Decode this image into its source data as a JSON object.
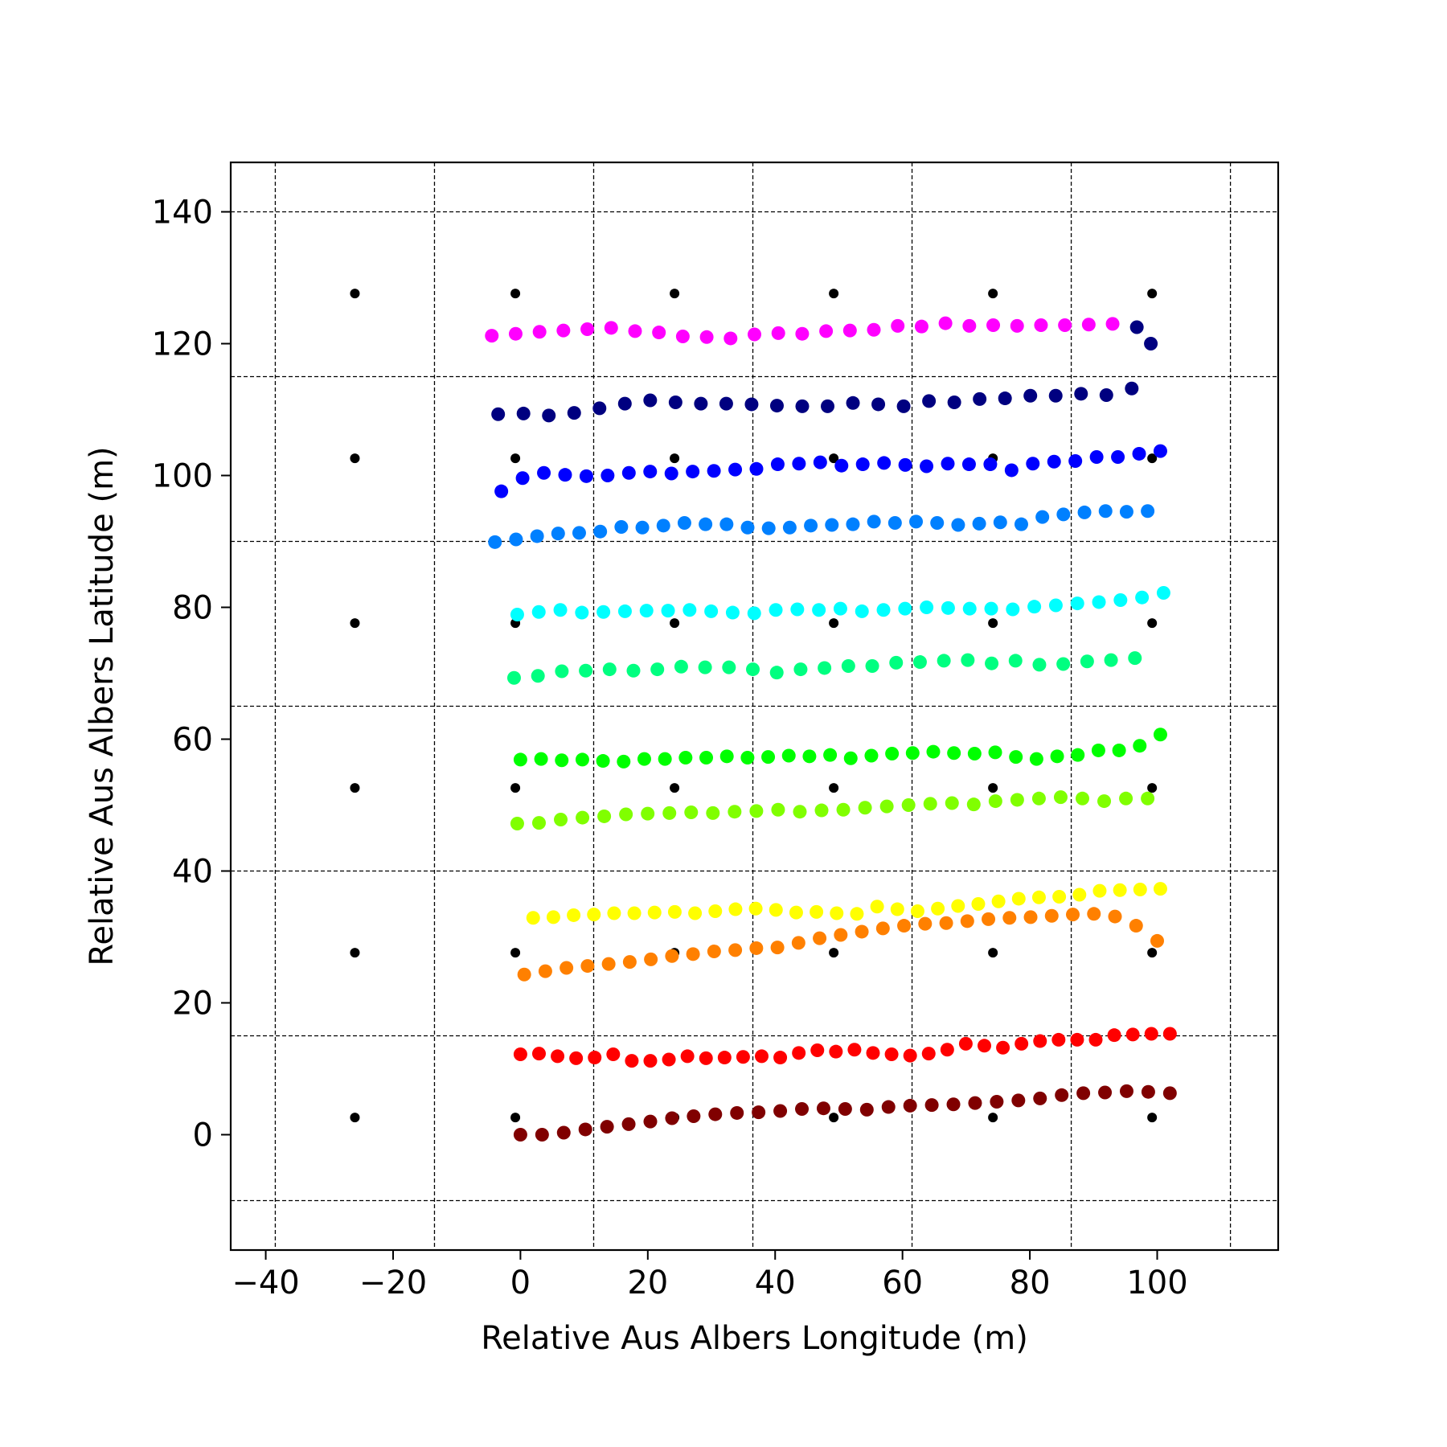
{
  "chart_data": {
    "type": "scatter",
    "title": "",
    "xlabel": "Relative Aus Albers Longitude (m)",
    "ylabel": "Relative Aus Albers Latitude (m)",
    "xlim": [
      -45.5,
      119
    ],
    "ylim": [
      -17.5,
      147.5
    ],
    "xticks": [
      -40,
      -20,
      0,
      20,
      40,
      60,
      80,
      100
    ],
    "xtick_labels": [
      "−40",
      "−20",
      "0",
      "20",
      "40",
      "60",
      "80",
      "100"
    ],
    "yticks": [
      0,
      20,
      40,
      60,
      80,
      100,
      120,
      140
    ],
    "ytick_labels": [
      "0",
      "20",
      "40",
      "60",
      "80",
      "100",
      "120",
      "140"
    ],
    "grid": {
      "style": "dashed",
      "x_lines": [
        -38.5,
        -13.5,
        11.5,
        36.5,
        61.5,
        86.5,
        111.5
      ],
      "y_lines": [
        -10,
        15,
        40,
        65,
        90,
        115,
        140
      ]
    },
    "reference_points": {
      "color": "#000000",
      "x": [
        -26,
        -0.8,
        24.2,
        49.2,
        74.2,
        99.2
      ],
      "y": [
        2.6,
        27.6,
        52.6,
        77.6,
        102.6,
        127.6
      ]
    },
    "series": [
      {
        "color": "#800000",
        "x_start": 0,
        "x_end": 102,
        "y": [
          0,
          0,
          0.3,
          0.8,
          1.2,
          1.6,
          2.0,
          2.5,
          2.8,
          3.1,
          3.3,
          3.4,
          3.6,
          3.9,
          4.0,
          3.9,
          3.8,
          4.2,
          4.4,
          4.5,
          4.6,
          4.8,
          5.0,
          5.2,
          5.5,
          6.0,
          6.3,
          6.4,
          6.6,
          6.5,
          6.3
        ]
      },
      {
        "color": "#ff0000",
        "x_start": 0,
        "x_end": 102,
        "y": [
          12.2,
          12.3,
          11.9,
          11.6,
          11.7,
          12.2,
          11.2,
          11.2,
          11.4,
          11.9,
          11.6,
          11.7,
          11.8,
          11.9,
          11.7,
          12.4,
          12.8,
          12.6,
          12.9,
          12.4,
          12.2,
          12.0,
          12.3,
          12.9,
          13.8,
          13.5,
          13.2,
          13.8,
          14.2,
          14.4,
          14.4,
          14.4,
          15.1,
          15.2,
          15.3,
          15.3
        ]
      },
      {
        "color": "#ff8000",
        "x_start": 0.6,
        "x_end": 100,
        "y": [
          24.3,
          24.8,
          25.3,
          25.6,
          25.9,
          26.2,
          26.6,
          27.1,
          27.4,
          27.8,
          28.0,
          28.3,
          28.4,
          29.1,
          29.8,
          30.3,
          30.8,
          31.3,
          31.7,
          32.0,
          32.1,
          32.4,
          32.7,
          32.9,
          33.0,
          33.2,
          33.4,
          33.5,
          33.1,
          31.7,
          29.4
        ]
      },
      {
        "color": "#ffff00",
        "x_start": 2,
        "x_end": 100.5,
        "y": [
          32.9,
          33.0,
          33.3,
          33.4,
          33.6,
          33.6,
          33.7,
          33.8,
          33.6,
          33.9,
          34.2,
          34.3,
          34.1,
          33.7,
          33.8,
          33.6,
          33.5,
          34.6,
          34.2,
          33.9,
          34.3,
          34.7,
          35.0,
          35.4,
          35.8,
          36.0,
          36.1,
          36.4,
          37.0,
          37.1,
          37.2,
          37.3
        ]
      },
      {
        "color": "#80ff00",
        "x_start": -0.5,
        "x_end": 98.5,
        "y": [
          47.2,
          47.3,
          47.8,
          48.1,
          48.3,
          48.6,
          48.7,
          48.8,
          48.9,
          48.8,
          49.0,
          49.1,
          49.3,
          49.0,
          49.2,
          49.3,
          49.6,
          49.8,
          50.0,
          50.2,
          50.3,
          50.1,
          50.6,
          50.8,
          51.0,
          51.2,
          51.0,
          50.6,
          51.0,
          51.0
        ]
      },
      {
        "color": "#00ff00",
        "x_start": 0,
        "x_end": 100.5,
        "y": [
          56.9,
          57.0,
          56.8,
          56.9,
          56.7,
          56.6,
          57.0,
          57.0,
          57.2,
          57.2,
          57.4,
          57.2,
          57.3,
          57.5,
          57.4,
          57.6,
          57.1,
          57.5,
          57.8,
          57.9,
          58.1,
          57.9,
          57.8,
          58.0,
          57.3,
          57.0,
          57.4,
          57.6,
          58.3,
          58.3,
          59.0,
          60.7
        ]
      },
      {
        "color": "#00ff80",
        "x_start": -1,
        "x_end": 96.5,
        "y": [
          69.3,
          69.6,
          70.3,
          70.4,
          70.6,
          70.4,
          70.6,
          71.0,
          70.9,
          70.9,
          70.6,
          70.1,
          70.6,
          70.8,
          71.1,
          71.1,
          71.6,
          71.7,
          71.9,
          72.0,
          71.5,
          71.9,
          71.3,
          71.4,
          71.8,
          72.0,
          72.3
        ]
      },
      {
        "color": "#00ffff",
        "x_start": -0.5,
        "x_end": 101,
        "y": [
          78.9,
          79.3,
          79.6,
          79.2,
          79.3,
          79.4,
          79.5,
          79.5,
          79.6,
          79.4,
          79.2,
          79.1,
          79.6,
          79.7,
          79.6,
          79.8,
          79.4,
          79.6,
          79.8,
          80.0,
          79.9,
          79.8,
          79.8,
          79.7,
          80.1,
          80.3,
          80.6,
          80.8,
          81.1,
          81.5,
          82.2
        ]
      },
      {
        "color": "#0080ff",
        "x_start": -4,
        "x_end": 98.5,
        "y": [
          89.9,
          90.3,
          90.8,
          91.2,
          91.3,
          91.5,
          92.2,
          92.1,
          92.4,
          92.8,
          92.6,
          92.6,
          92.1,
          92.0,
          92.1,
          92.4,
          92.5,
          92.6,
          93.0,
          92.8,
          93.0,
          92.8,
          92.5,
          92.7,
          92.9,
          92.6,
          93.7,
          94.1,
          94.4,
          94.6,
          94.5,
          94.6
        ]
      },
      {
        "color": "#0000ff",
        "x_start": -3,
        "x_end": 100.5,
        "y": [
          97.6,
          99.6,
          100.4,
          100.1,
          99.9,
          100.0,
          100.4,
          100.6,
          100.3,
          100.6,
          100.7,
          100.9,
          101.0,
          101.7,
          101.8,
          102.0,
          101.5,
          101.7,
          101.9,
          101.6,
          101.4,
          101.8,
          101.7,
          101.7,
          100.8,
          101.8,
          102.1,
          102.2,
          102.8,
          102.8,
          103.3,
          103.7
        ]
      },
      {
        "color": "#000080",
        "x_start": -3.5,
        "x_end": 96,
        "y": [
          109.3,
          109.4,
          109.1,
          109.5,
          110.2,
          110.9,
          111.4,
          111.1,
          110.9,
          110.9,
          110.8,
          110.6,
          110.5,
          110.5,
          111.0,
          110.8,
          110.5,
          111.3,
          111.1,
          111.6,
          111.7,
          112.1,
          112.1,
          112.4,
          112.2,
          113.2
        ]
      },
      {
        "color": "#ff00ff",
        "x_start": -4.5,
        "x_end": 93,
        "y": [
          121.2,
          121.5,
          121.8,
          122.0,
          122.2,
          122.4,
          121.9,
          121.7,
          121.1,
          121.0,
          120.8,
          121.4,
          121.6,
          121.5,
          121.9,
          122.0,
          122.1,
          122.7,
          122.6,
          123.1,
          122.7,
          122.8,
          122.7,
          122.8,
          122.8,
          122.9,
          123.0
        ]
      },
      {
        "color": "#000080",
        "x": [
          96.8,
          99
        ],
        "y": [
          122.5,
          120
        ]
      }
    ]
  }
}
